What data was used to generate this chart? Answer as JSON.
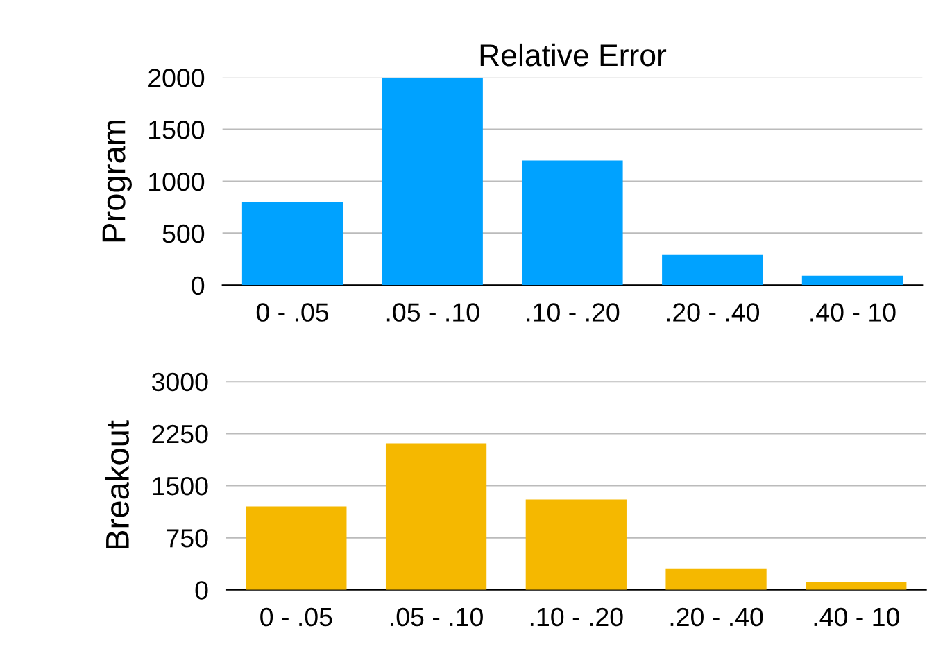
{
  "chart_data": [
    {
      "type": "bar",
      "title": "Relative Error",
      "ylabel": "Program",
      "categories": [
        "0 - .05",
        ".05 - .10",
        ".10 - .20",
        ".20 - .40",
        ".40 - 10"
      ],
      "values": [
        800,
        2000,
        1200,
        290,
        90
      ],
      "color": "#00a2ff",
      "ylim": [
        0,
        2000
      ],
      "yticks": [
        0,
        500,
        1000,
        1500,
        2000
      ],
      "grid": "y"
    },
    {
      "type": "bar",
      "ylabel": "Breakout",
      "categories": [
        "0 - .05",
        ".05 - .10",
        ".10 - .20",
        ".20 - .40",
        ".40 - 10"
      ],
      "values": [
        1200,
        2110,
        1300,
        300,
        110
      ],
      "color": "#f5b800",
      "ylim": [
        0,
        3000
      ],
      "yticks": [
        0,
        750,
        1500,
        2250,
        3000
      ],
      "grid": "y"
    }
  ]
}
